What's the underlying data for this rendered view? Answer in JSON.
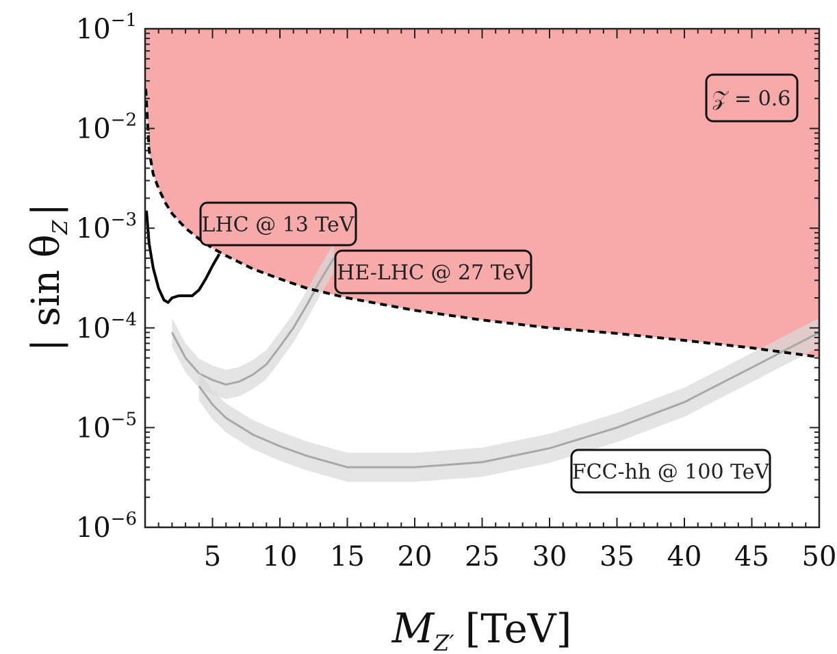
{
  "chart_data": {
    "type": "line",
    "xlabel_main": "M",
    "xlabel_sub": "Z′",
    "xlabel_unit": "[TeV]",
    "ylabel_text": "| sin θ",
    "ylabel_sub": "Z",
    "ylabel_close": "|",
    "xlim": [
      0,
      50
    ],
    "ylim": [
      1e-06,
      0.1
    ],
    "yscale": "log",
    "x_ticks": [
      5,
      10,
      15,
      20,
      25,
      30,
      35,
      40,
      45,
      50
    ],
    "x_tick_labels": [
      "5",
      "10",
      "15",
      "20",
      "25",
      "30",
      "35",
      "40",
      "45",
      "50"
    ],
    "y_ticks": [
      {
        "value": 1e-06,
        "base": "10",
        "exp": "−6"
      },
      {
        "value": 1e-05,
        "base": "10",
        "exp": "−5"
      },
      {
        "value": 0.0001,
        "base": "10",
        "exp": "−4"
      },
      {
        "value": 0.001,
        "base": "10",
        "exp": "−3"
      },
      {
        "value": 0.01,
        "base": "10",
        "exp": "−2"
      },
      {
        "value": 0.1,
        "base": "10",
        "exp": "−1"
      }
    ],
    "excluded_region_color": "#f8aaaa",
    "excluded_boundary": {
      "style": "dashed",
      "x": [
        0.05,
        0.3,
        0.6,
        1,
        1.5,
        2,
        3,
        4,
        5,
        6,
        8,
        10,
        12,
        15,
        20,
        25,
        30,
        35,
        40,
        45,
        50
      ],
      "y": [
        0.025,
        0.006,
        0.0035,
        0.0025,
        0.0018,
        0.0014,
        0.001,
        0.00078,
        0.00063,
        0.00053,
        0.00039,
        0.00031,
        0.00025,
        0.0002,
        0.00015,
        0.00012,
        0.0001,
        8.8e-05,
        7.5e-05,
        6.3e-05,
        5.1e-05
      ]
    },
    "series": [
      {
        "name": "LHC @ 13 TeV",
        "style": "solid-black",
        "x": [
          0.1,
          0.3,
          0.6,
          1.0,
          1.4,
          1.7,
          2.0,
          2.5,
          3.0,
          3.5,
          4.0,
          4.5,
          5.0,
          5.5
        ],
        "y": [
          0.0015,
          0.0007,
          0.0004,
          0.00025,
          0.00019,
          0.00018,
          0.0002,
          0.00021,
          0.00021,
          0.00021,
          0.00024,
          0.00031,
          0.00042,
          0.00055
        ]
      },
      {
        "name": "HE-LHC @ 27 TeV",
        "style": "gray-band",
        "x": [
          2,
          3,
          4,
          5,
          6,
          7,
          8,
          9,
          10,
          11,
          12,
          13,
          14
        ],
        "y": [
          9e-05,
          5e-05,
          3.5e-05,
          3e-05,
          2.7e-05,
          2.9e-05,
          3.4e-05,
          4.3e-05,
          6.5e-05,
          0.0001,
          0.00017,
          0.0003,
          0.0005
        ]
      },
      {
        "name": "FCC-hh @ 100 TeV",
        "style": "gray-band",
        "x": [
          4,
          5,
          6,
          8,
          10,
          12,
          15,
          20,
          25,
          30,
          35,
          40,
          45,
          50
        ],
        "y": [
          2.6e-05,
          1.7e-05,
          1.25e-05,
          8.5e-06,
          6.5e-06,
          5.2e-06,
          4e-06,
          4e-06,
          4.5e-06,
          6.2e-06,
          1e-05,
          1.8e-05,
          4e-05,
          9e-05
        ]
      }
    ],
    "annotation": {
      "text": "𝒵 = 0.6"
    }
  }
}
